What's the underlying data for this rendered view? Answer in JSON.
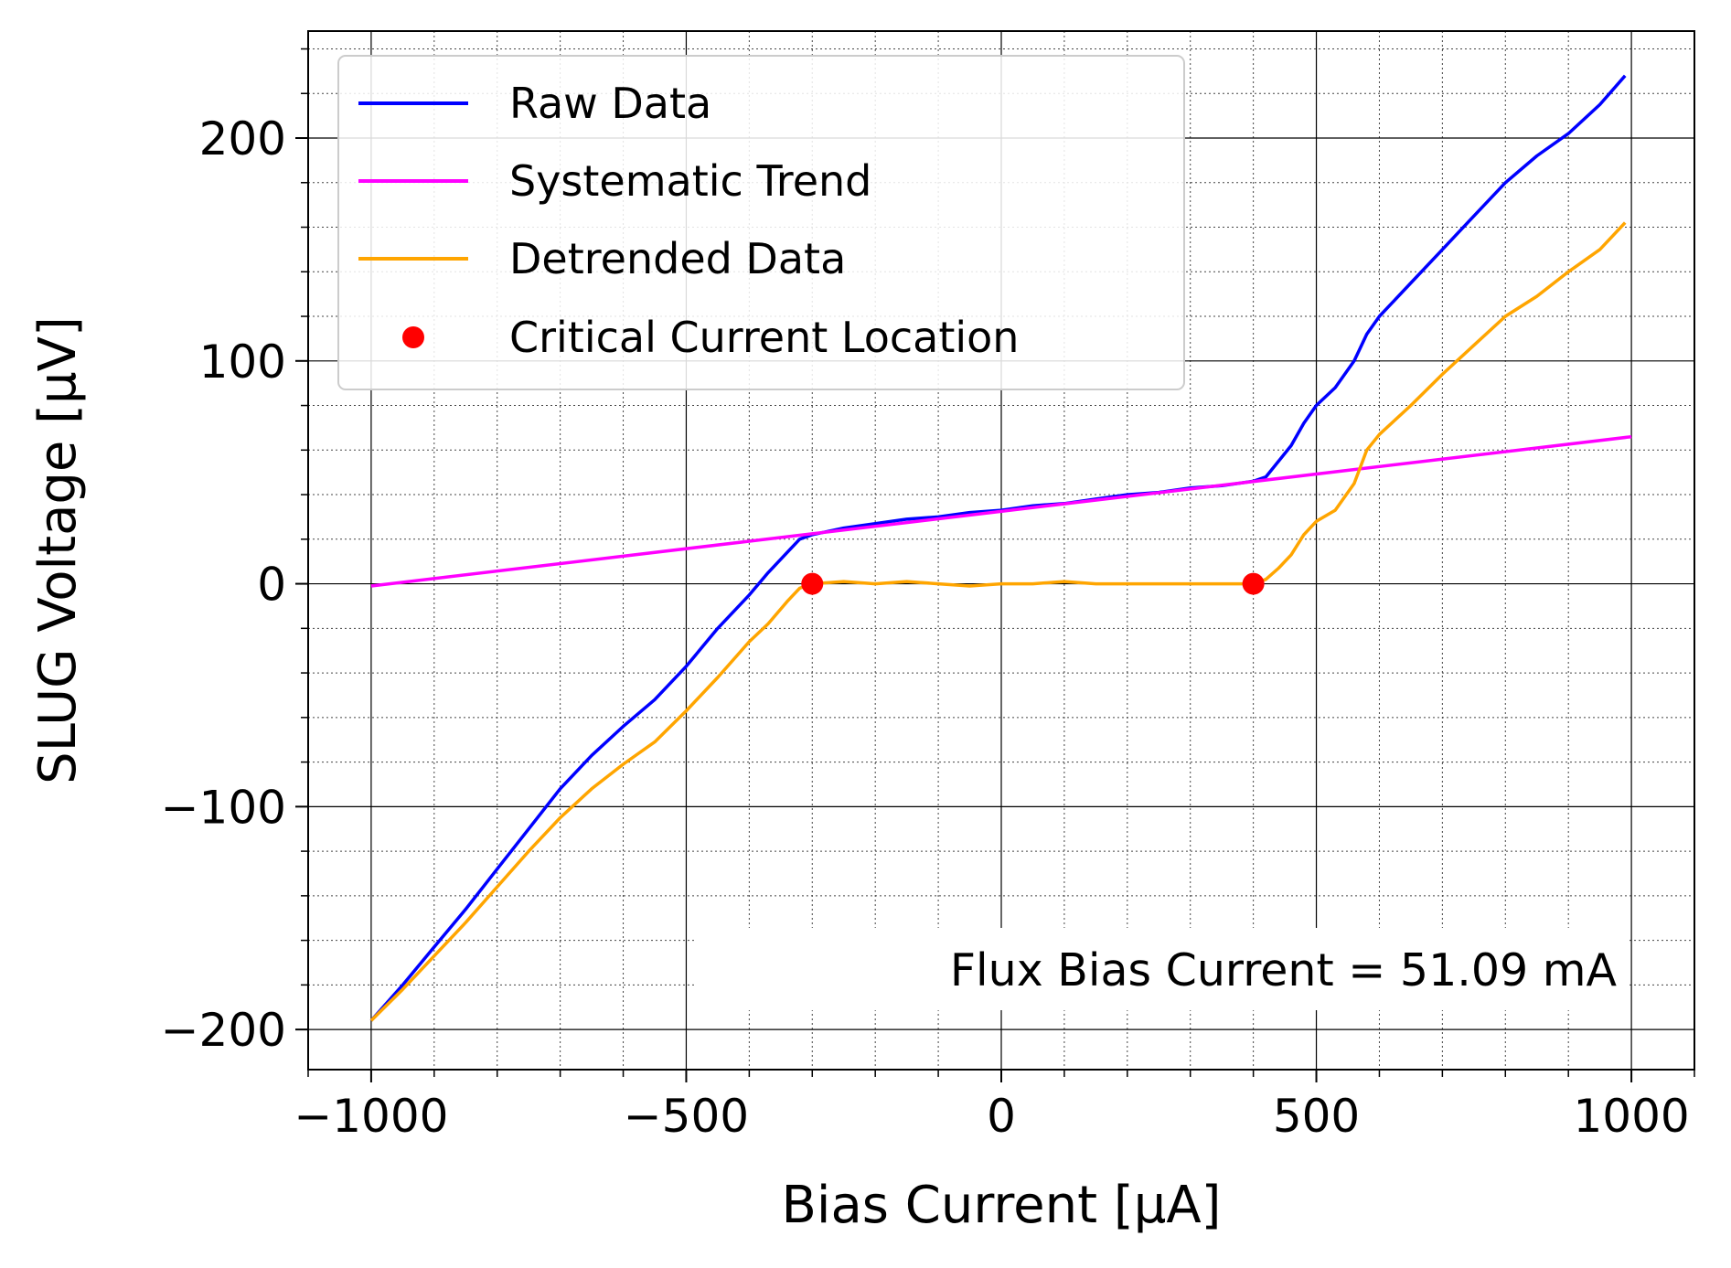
{
  "chart_data": {
    "type": "line",
    "xlabel": "Bias Current [μA]",
    "ylabel": "SLUG Voltage [μV]",
    "xlim": [
      -1100,
      1100
    ],
    "ylim": [
      -218,
      248
    ],
    "x_ticks": [
      -1000,
      -500,
      0,
      500,
      1000
    ],
    "y_ticks": [
      -200,
      -100,
      0,
      100,
      200
    ],
    "x_tick_labels": [
      "−1000",
      "−500",
      "0",
      "500",
      "1000"
    ],
    "y_tick_labels": [
      "−200",
      "−100",
      "0",
      "100",
      "200"
    ],
    "grid": true,
    "minor_grid": true,
    "legend_position": "top-left",
    "annotation": "Flux Bias Current = 51.09 mA",
    "series": [
      {
        "name": "Raw Data",
        "color": "#0000ff",
        "kind": "line",
        "x": [
          -1000,
          -950,
          -900,
          -850,
          -800,
          -750,
          -700,
          -650,
          -600,
          -550,
          -500,
          -450,
          -400,
          -370,
          -340,
          -320,
          -300,
          -250,
          -200,
          -150,
          -100,
          -50,
          0,
          50,
          100,
          150,
          200,
          250,
          300,
          350,
          400,
          420,
          440,
          460,
          480,
          500,
          530,
          560,
          580,
          600,
          650,
          700,
          750,
          800,
          850,
          900,
          950,
          990
        ],
        "y": [
          -196,
          -180,
          -163,
          -146,
          -128,
          -110,
          -92,
          -77,
          -64,
          -52,
          -37,
          -20,
          -5,
          5,
          14,
          20,
          22,
          25,
          27,
          29,
          30,
          32,
          33,
          35,
          36,
          38,
          40,
          41,
          43,
          44,
          46,
          48,
          55,
          62,
          72,
          80,
          88,
          100,
          112,
          120,
          135,
          150,
          165,
          180,
          192,
          202,
          215,
          228
        ]
      },
      {
        "name": "Systematic Trend",
        "color": "#ff00ff",
        "kind": "line",
        "x": [
          -1000,
          1000
        ],
        "y": [
          -1,
          66
        ]
      },
      {
        "name": "Detrended Data",
        "color": "#ffa500",
        "kind": "line",
        "x": [
          -1000,
          -950,
          -900,
          -850,
          -800,
          -750,
          -700,
          -650,
          -600,
          -550,
          -500,
          -450,
          -400,
          -370,
          -340,
          -320,
          -300,
          -250,
          -200,
          -150,
          -100,
          -50,
          0,
          50,
          100,
          150,
          200,
          250,
          300,
          350,
          400,
          420,
          440,
          460,
          480,
          500,
          530,
          560,
          580,
          600,
          650,
          700,
          750,
          800,
          850,
          900,
          950,
          990
        ],
        "y": [
          -196,
          -182,
          -167,
          -152,
          -136,
          -120,
          -105,
          -92,
          -81,
          -71,
          -57,
          -42,
          -26,
          -18,
          -8,
          -2,
          0,
          1,
          0,
          1,
          0,
          -1,
          0,
          0,
          1,
          0,
          0,
          0,
          0,
          0,
          0,
          2,
          7,
          13,
          22,
          28,
          33,
          45,
          60,
          67,
          80,
          94,
          107,
          120,
          129,
          140,
          150,
          162
        ]
      },
      {
        "name": "Critical Current Location",
        "color": "#ff0000",
        "kind": "scatter",
        "x": [
          -300,
          400
        ],
        "y": [
          0,
          0
        ]
      }
    ]
  }
}
